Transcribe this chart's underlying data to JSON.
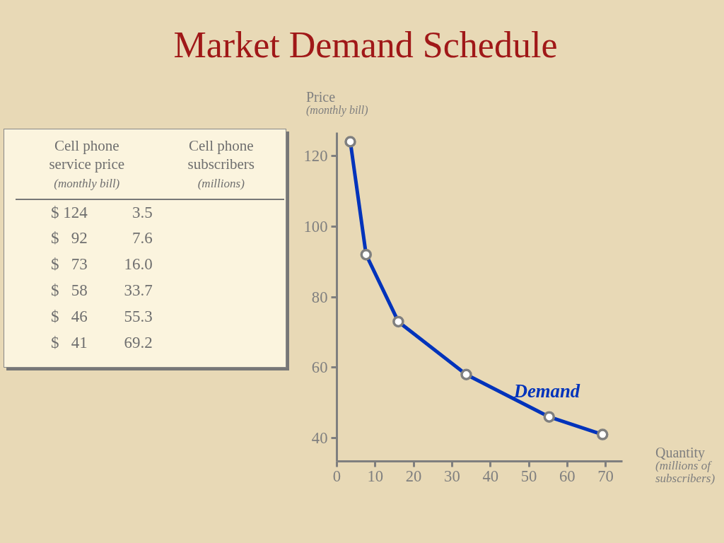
{
  "chart_data": [
    {
      "type": "other",
      "annotations": [
        "Cell phone\nservice price\n(monthly bill)",
        "Cell phone\nsubscribers\n(millions)",
        "$ 124           3.5",
        "$   92           7.6",
        "$   73         16.0",
        "$   58         33.7",
        "$   46         55.3",
        "$   41         69.2"
      ]
    },
    {
      "type": "line",
      "title": "Market Demand Schedule",
      "xlabel": "Quantity\n(millions of\nsubscribers)",
      "ylabel": "Price\n(monthly bill)",
      "x": [
        3.5,
        7.6,
        16.0,
        33.7,
        55.3,
        69.2
      ],
      "series": [
        {
          "name": "Demand",
          "color": "#0033bb",
          "values": [
            124,
            92,
            73,
            58,
            46,
            41
          ]
        }
      ],
      "xlim": [
        0,
        74.4
      ],
      "ylim": [
        33.4,
        126.6
      ],
      "xticks": [
        0,
        10,
        20,
        30,
        40,
        50,
        60,
        70
      ],
      "yticks": [
        40,
        60,
        80,
        100,
        120
      ],
      "marker": "circle",
      "line_style": "solid",
      "grid": false,
      "legend": false
    }
  ]
}
